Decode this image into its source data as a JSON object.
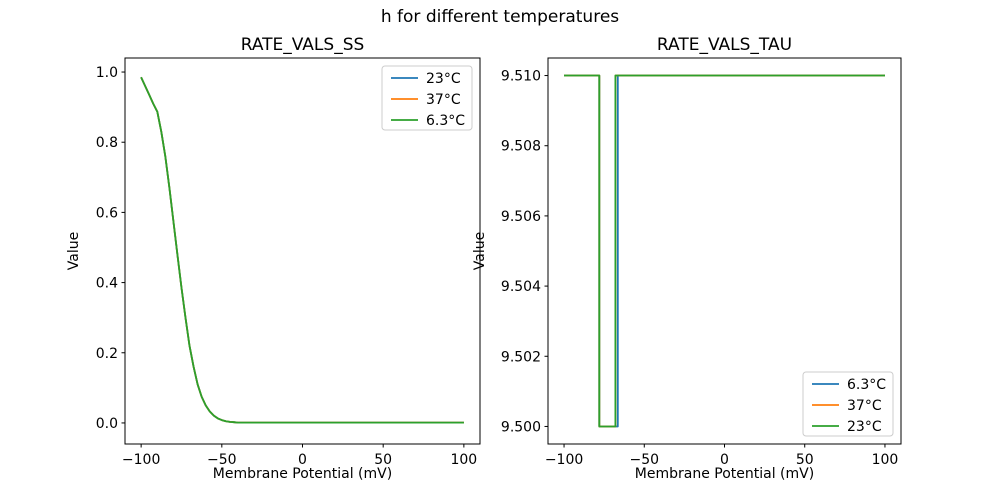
{
  "figure": {
    "title": "h for different temperatures",
    "background": "#ffffff"
  },
  "palette": {
    "blue": "#1f77b4",
    "orange": "#ff7f0e",
    "green": "#2ca02c",
    "axis": "#000000",
    "legend_border": "#cccccc"
  },
  "chart_data": [
    {
      "id": "rate-vals-ss",
      "type": "line",
      "title": "RATE_VALS_SS",
      "xlabel": "Membrane Potential (mV)",
      "ylabel": "Value",
      "xlim": [
        -110,
        110
      ],
      "ylim": [
        -0.06,
        1.04
      ],
      "xticks": [
        -100,
        -50,
        0,
        50,
        100
      ],
      "xtick_labels": [
        "−100",
        "−50",
        "0",
        "50",
        "100"
      ],
      "yticks": [
        0.0,
        0.2,
        0.4,
        0.6,
        0.8,
        1.0
      ],
      "ytick_labels": [
        "0.0",
        "0.2",
        "0.4",
        "0.6",
        "0.8",
        "1.0"
      ],
      "grid": false,
      "legend": {
        "loc": "upper-right",
        "entries": [
          {
            "label": "23°C",
            "color": "#1f77b4"
          },
          {
            "label": "37°C",
            "color": "#ff7f0e"
          },
          {
            "label": "6.3°C",
            "color": "#2ca02c"
          }
        ]
      },
      "note": "All three temperature curves are identical and overlap exactly; the green 6.3°C curve is drawn last and is the only one visible.",
      "series": [
        {
          "name": "23°C",
          "color": "#1f77b4",
          "x": [
            -100,
            -97.5,
            -95,
            -92.5,
            -90,
            -87.5,
            -85,
            -82.5,
            -80,
            -77.5,
            -75,
            -72.5,
            -70,
            -67.5,
            -65,
            -62.5,
            -60,
            -57.5,
            -55,
            -52.5,
            -50,
            -47.5,
            -45,
            -42.5,
            -40,
            -30,
            -20,
            -10,
            0,
            20,
            40,
            60,
            80,
            100
          ],
          "y": [
            0.985,
            0.96,
            0.935,
            0.91,
            0.887,
            0.83,
            0.76,
            0.67,
            0.575,
            0.48,
            0.385,
            0.3,
            0.22,
            0.16,
            0.11,
            0.075,
            0.05,
            0.033,
            0.021,
            0.013,
            0.008,
            0.005,
            0.003,
            0.002,
            0.001,
            0.001,
            0.001,
            0.001,
            0.001,
            0.001,
            0.001,
            0.001,
            0.001,
            0.001
          ]
        },
        {
          "name": "37°C",
          "color": "#ff7f0e",
          "x": [
            -100,
            -97.5,
            -95,
            -92.5,
            -90,
            -87.5,
            -85,
            -82.5,
            -80,
            -77.5,
            -75,
            -72.5,
            -70,
            -67.5,
            -65,
            -62.5,
            -60,
            -57.5,
            -55,
            -52.5,
            -50,
            -47.5,
            -45,
            -42.5,
            -40,
            -30,
            -20,
            -10,
            0,
            20,
            40,
            60,
            80,
            100
          ],
          "y": [
            0.985,
            0.96,
            0.935,
            0.91,
            0.887,
            0.83,
            0.76,
            0.67,
            0.575,
            0.48,
            0.385,
            0.3,
            0.22,
            0.16,
            0.11,
            0.075,
            0.05,
            0.033,
            0.021,
            0.013,
            0.008,
            0.005,
            0.003,
            0.002,
            0.001,
            0.001,
            0.001,
            0.001,
            0.001,
            0.001,
            0.001,
            0.001,
            0.001,
            0.001
          ]
        },
        {
          "name": "6.3°C",
          "color": "#2ca02c",
          "x": [
            -100,
            -97.5,
            -95,
            -92.5,
            -90,
            -87.5,
            -85,
            -82.5,
            -80,
            -77.5,
            -75,
            -72.5,
            -70,
            -67.5,
            -65,
            -62.5,
            -60,
            -57.5,
            -55,
            -52.5,
            -50,
            -47.5,
            -45,
            -42.5,
            -40,
            -30,
            -20,
            -10,
            0,
            20,
            40,
            60,
            80,
            100
          ],
          "y": [
            0.985,
            0.96,
            0.935,
            0.91,
            0.887,
            0.83,
            0.76,
            0.67,
            0.575,
            0.48,
            0.385,
            0.3,
            0.22,
            0.16,
            0.11,
            0.075,
            0.05,
            0.033,
            0.021,
            0.013,
            0.008,
            0.005,
            0.003,
            0.002,
            0.001,
            0.001,
            0.001,
            0.001,
            0.001,
            0.001,
            0.001,
            0.001,
            0.001,
            0.001
          ]
        }
      ]
    },
    {
      "id": "rate-vals-tau",
      "type": "line",
      "title": "RATE_VALS_TAU",
      "xlabel": "Membrane Potential (mV)",
      "ylabel": "Value",
      "xlim": [
        -110,
        110
      ],
      "ylim": [
        9.4995,
        9.5105
      ],
      "xticks": [
        -100,
        -50,
        0,
        50,
        100
      ],
      "xtick_labels": [
        "−100",
        "−50",
        "0",
        "50",
        "100"
      ],
      "yticks": [
        9.5,
        9.502,
        9.504,
        9.506,
        9.508,
        9.51
      ],
      "ytick_labels": [
        "9.500",
        "9.502",
        "9.504",
        "9.506",
        "9.508",
        "9.510"
      ],
      "grid": false,
      "legend": {
        "loc": "lower-right",
        "entries": [
          {
            "label": "6.3°C",
            "color": "#1f77b4"
          },
          {
            "label": "37°C",
            "color": "#ff7f0e"
          },
          {
            "label": "23°C",
            "color": "#2ca02c"
          }
        ]
      },
      "note": "Curves overlap at tau=9.510 except a notch to 9.500 between about -78 and -68 mV; the blue 6.3°C notch extends slightly further right (to about -66.5 mV) so its rising edge is visible beside the green one.",
      "series": [
        {
          "name": "6.3°C",
          "color": "#1f77b4",
          "x": [
            -100,
            -78,
            -78,
            -66.5,
            -66.5,
            100
          ],
          "y": [
            9.51,
            9.51,
            9.5,
            9.5,
            9.51,
            9.51
          ]
        },
        {
          "name": "37°C",
          "color": "#ff7f0e",
          "x": [
            -100,
            -78,
            -78,
            -68,
            -68,
            100
          ],
          "y": [
            9.51,
            9.51,
            9.5,
            9.5,
            9.51,
            9.51
          ]
        },
        {
          "name": "23°C",
          "color": "#2ca02c",
          "x": [
            -100,
            -78,
            -78,
            -68,
            -68,
            100
          ],
          "y": [
            9.51,
            9.51,
            9.5,
            9.5,
            9.51,
            9.51
          ]
        }
      ]
    }
  ]
}
